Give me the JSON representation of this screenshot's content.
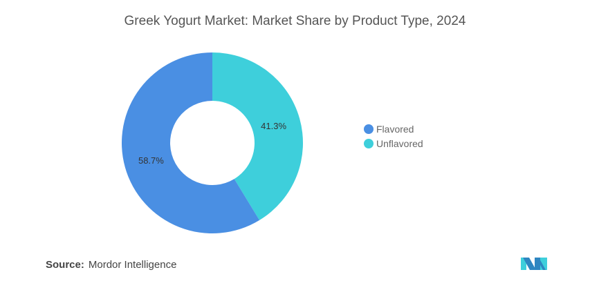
{
  "chart_data": {
    "type": "pie",
    "donut": true,
    "title": "Greek Yogurt Market: Market Share by Product Type, 2024",
    "slices": [
      {
        "label": "Unflavored",
        "value": 41.3,
        "display": "41.3%",
        "color": "#3ECFDB"
      },
      {
        "label": "Flavored",
        "value": 58.7,
        "display": "58.7%",
        "color": "#4A8FE3"
      }
    ],
    "legend_order": [
      "Flavored",
      "Unflavored"
    ],
    "legend_colors": [
      "#4A8FE3",
      "#3ECFDB"
    ],
    "legend_placement": "right"
  },
  "source": {
    "label": "Source:",
    "value": "Mordor Intelligence"
  }
}
